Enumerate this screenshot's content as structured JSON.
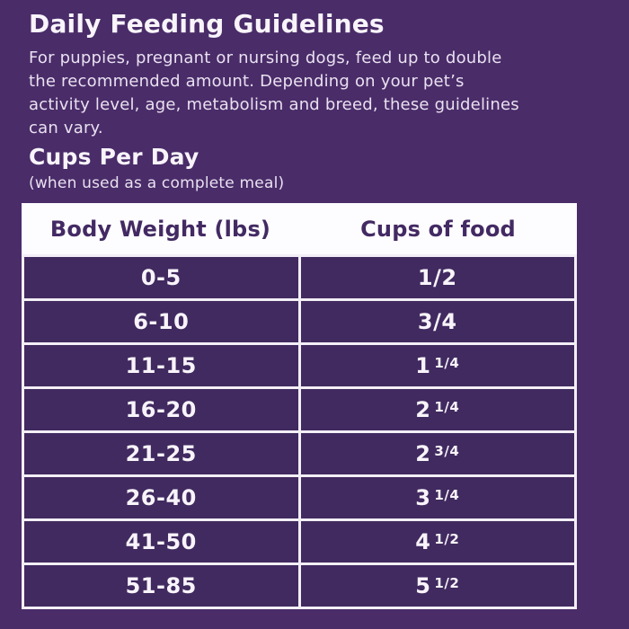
{
  "page": {
    "title": "Daily Feeding Guidelines",
    "description": "For puppies, pregnant or nursing dogs, feed up to double the recommended amount. Depending on your pet’s activity level, age, metabolism and breed, these guidelines can vary.",
    "description_lines": [
      "For puppies, pregnant or nursing dogs, feed up to double",
      "the recommended amount. Depending on your pet’s",
      "activity level, age, metabolism and breed, these guidelines",
      "can vary."
    ],
    "section_title": "Cups Per Day",
    "section_subtitle": "(when used as a complete meal)"
  },
  "table": {
    "headers": [
      "Body Weight (lbs)",
      "Cups of food"
    ],
    "rows": [
      {
        "weight": "0-5",
        "cups_whole": "",
        "cups_fraction": "1/2"
      },
      {
        "weight": "6-10",
        "cups_whole": "",
        "cups_fraction": "3/4"
      },
      {
        "weight": "11-15",
        "cups_whole": "1",
        "cups_fraction": "1/4"
      },
      {
        "weight": "16-20",
        "cups_whole": "2",
        "cups_fraction": "1/4"
      },
      {
        "weight": "21-25",
        "cups_whole": "2",
        "cups_fraction": "3/4"
      },
      {
        "weight": "26-40",
        "cups_whole": "3",
        "cups_fraction": "1/4"
      },
      {
        "weight": "41-50",
        "cups_whole": "4",
        "cups_fraction": "1/2"
      },
      {
        "weight": "51-85",
        "cups_whole": "5",
        "cups_fraction": "1/2"
      }
    ]
  },
  "colors": {
    "page_background": "#4a2c69",
    "cell_background": "#412a60",
    "table_border": "#f3eff6",
    "header_background": "#fdfcfe",
    "header_text": "#432a63",
    "light_text": "#f8f4fa",
    "body_text": "#e9e1f0"
  }
}
